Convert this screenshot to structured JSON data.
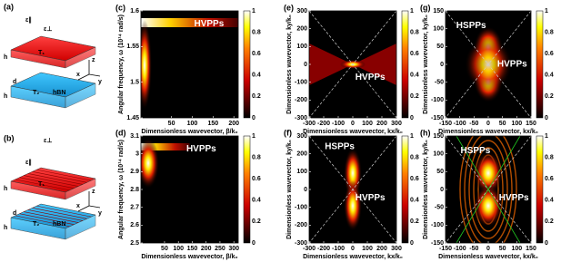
{
  "schematics": [
    {
      "label": "(a)",
      "eps_par": "ε∥",
      "eps_perp": "ε⊥",
      "top": "T₁",
      "bottom": "T₂",
      "material": "hBN",
      "h_top": "h",
      "h_bottom": "h",
      "d": "d",
      "x": "x",
      "y": "y",
      "z": "z"
    },
    {
      "label": "(b)",
      "eps_par": "ε∥",
      "eps_perp": "ε⊥",
      "top": "T₁",
      "bottom": "T₂",
      "material": "hBN",
      "h_top": "h",
      "h_bottom": "h",
      "d": "d",
      "x": "x",
      "y": "y",
      "z": "z"
    }
  ],
  "panels": [
    {
      "label": "(c)",
      "ylabel": "Angular frequency, ω (10¹⁴ rad/s)",
      "xlabel": "Dimensionless wavevector, β/k₀",
      "yticks": [
        1.45,
        1.5,
        1.55,
        1.6
      ],
      "xticks": [
        50,
        100,
        150,
        200
      ],
      "cbticks": [
        0,
        0.2,
        0.4,
        0.6,
        0.8,
        1
      ],
      "annotations": [
        "HVPPs"
      ]
    },
    {
      "label": "(d)",
      "ylabel": "Angular frequency, ω (10¹⁴ rad/s)",
      "xlabel": "Dimensionless wavevector, β/k₀",
      "yticks": [
        2.5,
        2.6,
        2.7,
        2.8,
        2.9,
        3,
        3.1
      ],
      "xticks": [
        50,
        100,
        150,
        200,
        250,
        300
      ],
      "cbticks": [
        0,
        0.2,
        0.4,
        0.6,
        0.8,
        1
      ],
      "annotations": [
        "HVPPs"
      ]
    },
    {
      "label": "(e)",
      "ylabel": "Dimensionless wavevector, ky/k₀",
      "xlabel": "Dimensionless wavevector, kx/k₀",
      "yticks": [
        -300,
        -200,
        -100,
        0,
        100,
        200,
        300
      ],
      "xticks": [
        -300,
        -200,
        -100,
        0,
        100,
        200,
        300
      ],
      "cbticks": [
        0,
        0.2,
        0.4,
        0.6,
        0.8,
        1
      ],
      "annotations": [
        "HVPPs"
      ]
    },
    {
      "label": "(f)",
      "ylabel": "Dimensionless wavevector, ky/k₀",
      "xlabel": "Dimensionless wavevector, kx/k₀",
      "yticks": [
        -300,
        -200,
        -100,
        0,
        100,
        200,
        300
      ],
      "xticks": [
        -300,
        -200,
        -100,
        0,
        100,
        200,
        300
      ],
      "cbticks": [
        0,
        0.2,
        0.4,
        0.6,
        0.8,
        1
      ],
      "annotations": [
        "HSPPs",
        "HVPPs"
      ]
    },
    {
      "label": "(g)",
      "ylabel": "Dimensionless wavevector, ky/k₀",
      "xlabel": "Dimensionless wavevector, kx/k₀",
      "yticks": [
        -150,
        -100,
        -50,
        0,
        50,
        100,
        150
      ],
      "xticks": [
        -150,
        -100,
        -50,
        0,
        50,
        100,
        150
      ],
      "cbticks": [
        0,
        0.2,
        0.4,
        0.6,
        0.8,
        1
      ],
      "annotations": [
        "HSPPs",
        "HVPPs"
      ]
    },
    {
      "label": "(h)",
      "ylabel": "Dimensionless wavevector, ky/k₀",
      "xlabel": "Dimensionless wavevector, kx/k₀",
      "yticks": [
        -150,
        -100,
        -50,
        0,
        50,
        100,
        150
      ],
      "xticks": [
        -150,
        -100,
        -50,
        0,
        50,
        100,
        150
      ],
      "cbticks": [
        0,
        0.2,
        0.4,
        0.6,
        0.8,
        1
      ],
      "annotations": [
        "HSPPs",
        "HVPPs"
      ]
    }
  ]
}
